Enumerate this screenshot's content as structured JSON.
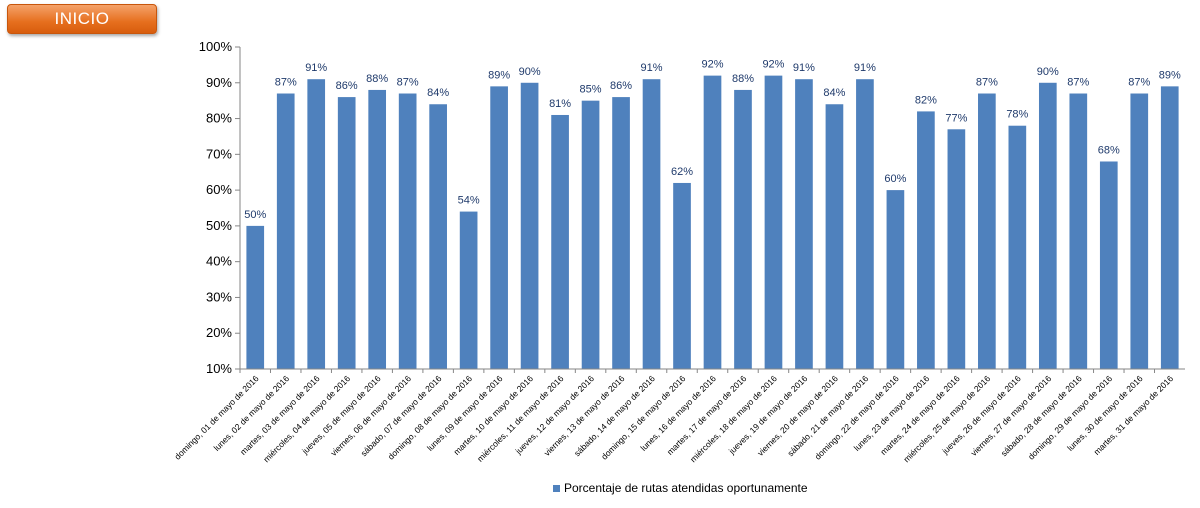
{
  "header": {
    "inicio_label": "INICIO"
  },
  "colors": {
    "bar": "#4f81bd",
    "data_label": "#1f3a6b",
    "button": "#e66f1e"
  },
  "chart_data": {
    "type": "bar",
    "categories": [
      "domingo, 01 de mayo de 2016",
      "lunes, 02 de mayo de 2016",
      "martes, 03 de mayo de 2016",
      "miércoles, 04 de mayo de 2016",
      "jueves, 05 de mayo de 2016",
      "viernes, 06 de mayo de 2016",
      "sábado, 07 de mayo de 2016",
      "domingo, 08 de mayo de 2016",
      "lunes, 09 de mayo de 2016",
      "martes, 10 de mayo de 2016",
      "miércoles, 11 de mayo de 2016",
      "jueves, 12 de mayo de 2016",
      "viernes, 13 de mayo de 2016",
      "sábado, 14 de mayo de 2016",
      "domingo, 15 de mayo de 2016",
      "lunes, 16 de mayo de 2016",
      "martes, 17 de mayo de 2016",
      "miércoles, 18 de mayo de 2016",
      "jueves, 19 de mayo de 2016",
      "viernes, 20 de mayo de 2016",
      "sábado, 21 de mayo de 2016",
      "domingo, 22 de mayo de 2016",
      "lunes, 23 de mayo de 2016",
      "martes, 24 de mayo de 2016",
      "miércoles, 25 de mayo de 2016",
      "jueves, 26 de mayo de 2016",
      "viernes, 27 de mayo de 2016",
      "sábado, 28 de mayo de 2016",
      "domingo, 29 de mayo de 2016",
      "lunes, 30 de mayo de 2016",
      "martes, 31 de mayo de 2016"
    ],
    "series": [
      {
        "name": "Porcentaje de rutas atendidas oportunamente",
        "values": [
          50,
          87,
          91,
          86,
          88,
          87,
          84,
          54,
          89,
          90,
          81,
          85,
          86,
          91,
          62,
          92,
          88,
          92,
          91,
          84,
          91,
          60,
          82,
          77,
          87,
          78,
          90,
          87,
          68,
          87,
          89
        ]
      }
    ],
    "data_labels": [
      "50%",
      "87%",
      "91%",
      "86%",
      "88%",
      "87%",
      "84%",
      "54%",
      "89%",
      "90%",
      "81%",
      "85%",
      "86%",
      "91%",
      "62%",
      "92%",
      "88%",
      "92%",
      "91%",
      "84%",
      "91%",
      "60%",
      "82%",
      "77%",
      "87%",
      "78%",
      "90%",
      "87%",
      "68%",
      "87%",
      "89%"
    ],
    "yticks": [
      "10%",
      "20%",
      "30%",
      "40%",
      "50%",
      "60%",
      "70%",
      "80%",
      "90%",
      "100%"
    ],
    "ylim": [
      10,
      100
    ],
    "grid": false,
    "legend_position": "bottom"
  }
}
